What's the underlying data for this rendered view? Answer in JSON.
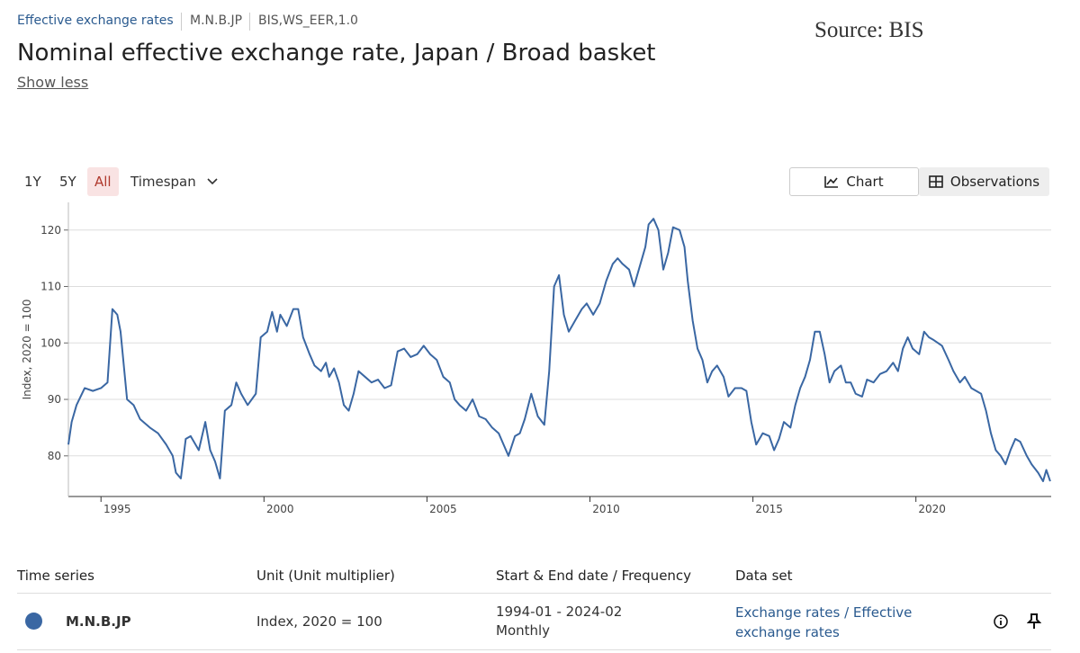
{
  "header": {
    "breadcrumb": [
      "Effective exchange rates",
      "M.N.B.JP",
      "BIS,WS_EER,1.0"
    ],
    "source": "Source: BIS",
    "title": "Nominal effective exchange rate, Japan / Broad basket",
    "toggle": "Show less"
  },
  "controls": {
    "ranges": [
      "1Y",
      "5Y",
      "All"
    ],
    "timespan": "Timespan",
    "views": [
      "Chart",
      "Observations"
    ]
  },
  "chart_data": {
    "type": "line",
    "y_label": "Index, 2020 = 100",
    "x": [
      1994.0,
      1994.1,
      1994.25,
      1994.5,
      1994.75,
      1995.0,
      1995.2,
      1995.35,
      1995.5,
      1995.6,
      1995.8,
      1996.0,
      1996.2,
      1996.5,
      1996.75,
      1997.0,
      1997.2,
      1997.3,
      1997.45,
      1997.6,
      1997.75,
      1997.9,
      1998.0,
      1998.2,
      1998.35,
      1998.5,
      1998.65,
      1998.8,
      1999.0,
      1999.15,
      1999.3,
      1999.5,
      1999.75,
      1999.9,
      2000.1,
      2000.25,
      2000.4,
      2000.5,
      2000.7,
      2000.9,
      2001.05,
      2001.2,
      2001.4,
      2001.55,
      2001.75,
      2001.9,
      2002.0,
      2002.15,
      2002.3,
      2002.45,
      2002.6,
      2002.75,
      2002.9,
      2003.1,
      2003.3,
      2003.5,
      2003.7,
      2003.9,
      2004.1,
      2004.3,
      2004.5,
      2004.7,
      2004.9,
      2005.1,
      2005.3,
      2005.5,
      2005.7,
      2005.85,
      2006.0,
      2006.2,
      2006.4,
      2006.6,
      2006.8,
      2007.0,
      2007.2,
      2007.35,
      2007.5,
      2007.7,
      2007.85,
      2008.0,
      2008.2,
      2008.4,
      2008.6,
      2008.75,
      2008.9,
      2009.05,
      2009.2,
      2009.35,
      2009.55,
      2009.75,
      2009.9,
      2010.1,
      2010.3,
      2010.5,
      2010.7,
      2010.85,
      2011.0,
      2011.2,
      2011.35,
      2011.5,
      2011.7,
      2011.8,
      2011.95,
      2012.1,
      2012.25,
      2012.4,
      2012.55,
      2012.75,
      2012.9,
      2013.0,
      2013.15,
      2013.3,
      2013.45,
      2013.6,
      2013.75,
      2013.9,
      2014.1,
      2014.25,
      2014.45,
      2014.65,
      2014.8,
      2014.95,
      2015.1,
      2015.3,
      2015.5,
      2015.65,
      2015.8,
      2015.95,
      2016.15,
      2016.3,
      2016.45,
      2016.6,
      2016.75,
      2016.9,
      2017.05,
      2017.2,
      2017.35,
      2017.5,
      2017.7,
      2017.85,
      2018.0,
      2018.15,
      2018.35,
      2018.5,
      2018.7,
      2018.9,
      2019.1,
      2019.3,
      2019.45,
      2019.6,
      2019.75,
      2019.9,
      2020.1,
      2020.25,
      2020.4,
      2020.55,
      2020.8,
      2021.0,
      2021.15,
      2021.35,
      2021.5,
      2021.7,
      2021.85,
      2022.0,
      2022.15,
      2022.3,
      2022.45,
      2022.6,
      2022.75,
      2022.9,
      2023.05,
      2023.2,
      2023.4,
      2023.55,
      2023.75,
      2023.9,
      2024.0,
      2024.12
    ],
    "series": [
      {
        "color": "#3a67a3",
        "values": [
          82,
          86,
          89,
          92,
          91.5,
          92,
          93,
          106,
          105,
          102,
          90,
          89,
          86.5,
          85,
          84,
          82,
          80,
          77,
          76,
          83,
          83.5,
          82,
          81,
          86,
          81,
          79,
          76,
          88,
          89,
          93,
          91,
          89,
          91,
          101,
          102,
          105.5,
          102,
          105,
          103,
          106,
          106,
          101,
          98,
          96,
          95,
          96.5,
          94,
          95.5,
          93,
          89,
          88,
          91,
          95,
          94,
          93,
          93.5,
          92,
          92.5,
          98.5,
          99,
          97.5,
          98,
          99.5,
          98,
          97,
          94,
          93,
          90,
          89,
          88,
          90,
          87,
          86.5,
          85,
          84,
          82,
          80,
          83.5,
          84,
          86.5,
          91,
          87,
          85.5,
          95,
          110,
          112,
          105,
          102,
          104,
          106,
          107,
          105,
          107,
          111,
          114,
          115,
          114,
          113,
          110,
          113,
          117,
          121,
          122,
          120,
          113,
          116,
          120.5,
          120,
          117,
          111,
          104,
          99,
          97,
          93,
          95,
          96,
          94,
          90.5,
          92,
          92,
          91.5,
          86,
          82,
          84,
          83.5,
          81,
          83,
          86,
          85,
          89,
          92,
          94,
          97,
          102,
          102,
          98,
          93,
          95,
          96,
          93,
          93,
          91,
          90.5,
          93.5,
          93,
          94.5,
          95,
          96.5,
          95,
          99,
          101,
          99,
          98,
          102,
          101,
          100.5,
          99.5,
          97,
          95,
          93,
          94,
          92,
          91.5,
          91,
          88,
          84,
          81,
          80,
          78.5,
          81,
          83,
          82.5,
          80,
          78.5,
          77,
          75.5,
          77.5,
          75.5
        ]
      }
    ],
    "xlim": [
      1994.0,
      2024.15
    ],
    "ylim": [
      72.8,
      124.9
    ],
    "xticks": [
      1995,
      2000,
      2005,
      2010,
      2015,
      2020
    ],
    "yticks": [
      80,
      90,
      100,
      110,
      120
    ],
    "grid": true
  },
  "table": {
    "headers": [
      "Time series",
      "Unit (Unit multiplier)",
      "Start & End date / Frequency",
      "Data set"
    ],
    "rows": [
      [
        "M.N.B.JP",
        "Index, 2020 = 100",
        "1994-01 - 2024-02",
        "Monthly",
        "Exchange rates / Effective exchange rates"
      ]
    ]
  }
}
